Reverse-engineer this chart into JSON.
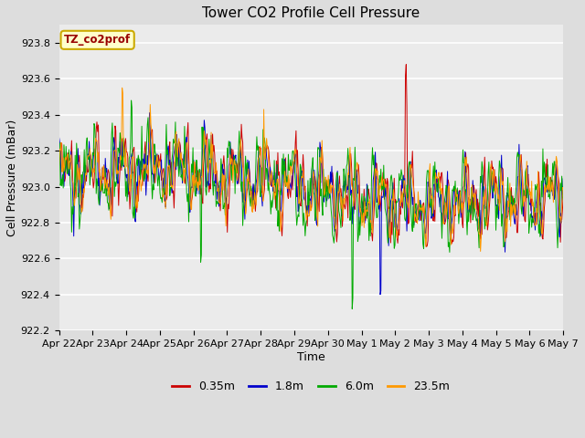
{
  "title": "Tower CO2 Profile Cell Pressure",
  "xlabel": "Time",
  "ylabel": "Cell Pressure (mBar)",
  "ylim": [
    922.2,
    923.9
  ],
  "yticks": [
    922.2,
    922.4,
    922.6,
    922.8,
    923.0,
    923.2,
    923.4,
    923.6,
    923.8
  ],
  "xtick_labels": [
    "Apr 22",
    "Apr 23",
    "Apr 24",
    "Apr 25",
    "Apr 26",
    "Apr 27",
    "Apr 28",
    "Apr 29",
    "Apr 30",
    "May 1",
    "May 2",
    "May 3",
    "May 4",
    "May 5",
    "May 6",
    "May 7"
  ],
  "series_colors": [
    "#cc0000",
    "#0000cc",
    "#00aa00",
    "#ff9900"
  ],
  "series_labels": [
    "0.35m",
    "1.8m",
    "6.0m",
    "23.5m"
  ],
  "legend_box_color": "#ffffcc",
  "legend_box_edge": "#ccaa00",
  "legend_label_color": "#990000",
  "legend_label": "TZ_co2prof",
  "bg_color": "#dddddd",
  "plot_bg_color": "#ebebeb",
  "base_pressure": 923.05,
  "title_fontsize": 11,
  "axis_label_fontsize": 9,
  "tick_fontsize": 8
}
